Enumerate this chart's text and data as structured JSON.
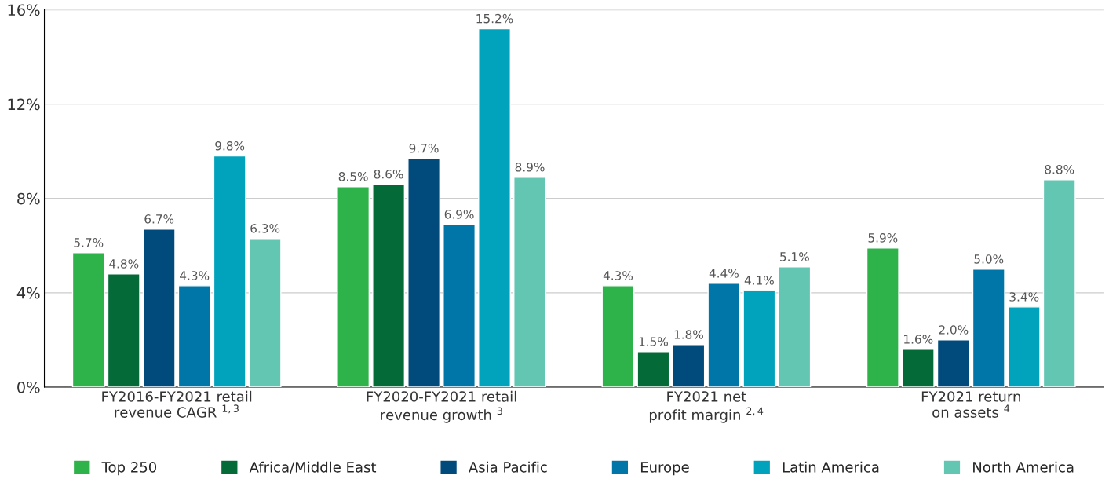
{
  "chart_data": {
    "type": "bar",
    "categories": [
      "FY2016-FY2021 retail\nrevenue CAGR $^{1,3}$",
      "FY2020-FY2021 retail\nrevenue growth $^{3}$",
      "FY2021 net\nprofit margin $^{2,4}$",
      "FY2021 return\non assets $^{4}$"
    ],
    "series": [
      {
        "name": "Top 250",
        "color": "#2db34a",
        "values": [
          5.7,
          8.5,
          4.3,
          5.9
        ],
        "value_labels": [
          "5.7%",
          "8.5%",
          "4.3%",
          "5.9%"
        ]
      },
      {
        "name": "Africa/Middle East",
        "color": "#046a38",
        "values": [
          4.8,
          8.6,
          1.5,
          1.6
        ],
        "value_labels": [
          "4.8%",
          "8.6%",
          "1.5%",
          "1.6%"
        ]
      },
      {
        "name": "Asia Pacific",
        "color": "#004b7c",
        "values": [
          6.7,
          9.7,
          1.8,
          2.0
        ],
        "value_labels": [
          "6.7%",
          "9.7%",
          "1.8%",
          "2.0%"
        ]
      },
      {
        "name": "Europe",
        "color": "#0076a8",
        "values": [
          4.3,
          6.9,
          4.4,
          5.0
        ],
        "value_labels": [
          "4.3%",
          "6.9%",
          "4.4%",
          "5.0%"
        ]
      },
      {
        "name": "Latin America",
        "color": "#00a3bb",
        "values": [
          9.8,
          15.2,
          4.1,
          3.4
        ],
        "value_labels": [
          "9.8%",
          "15.2%",
          "4.1%",
          "3.4%"
        ]
      },
      {
        "name": "North America",
        "color": "#62c6b3",
        "values": [
          6.3,
          8.9,
          5.1,
          8.8
        ],
        "value_labels": [
          "6.3%",
          "8.9%",
          "5.1%",
          "8.8%"
        ]
      }
    ],
    "ylim": [
      0,
      16
    ],
    "yticks": [
      {
        "value": 0,
        "label": "0%"
      },
      {
        "value": 4,
        "label": "4%"
      },
      {
        "value": 8,
        "label": "8%"
      },
      {
        "value": 12,
        "label": "12%"
      },
      {
        "value": 16,
        "label": "16%"
      }
    ],
    "grid": "y",
    "legend": "bottom"
  }
}
